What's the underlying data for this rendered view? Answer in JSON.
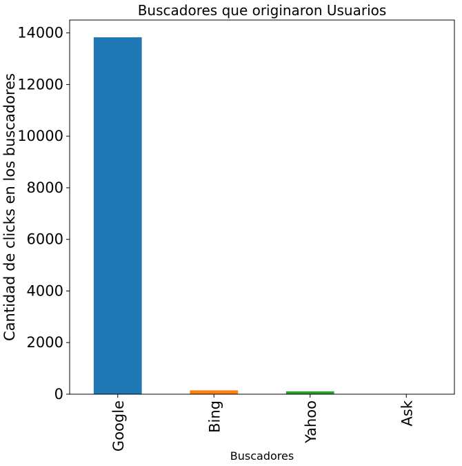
{
  "chart_data": {
    "type": "bar",
    "title": "Buscadores que originaron Usuarios",
    "xlabel": "Buscadores",
    "ylabel": "Cantidad de clicks en los buscadores",
    "categories": [
      "Google",
      "Bing",
      "Yahoo",
      "Ask"
    ],
    "values": [
      13830,
      150,
      110,
      5
    ],
    "colors": [
      "#1f77b4",
      "#ff7f0e",
      "#2ca02c",
      "#d62728"
    ],
    "ylim": [
      0,
      14500
    ],
    "yticks": [
      0,
      2000,
      4000,
      6000,
      8000,
      10000,
      12000,
      14000
    ],
    "grid": false,
    "legend": "none"
  }
}
